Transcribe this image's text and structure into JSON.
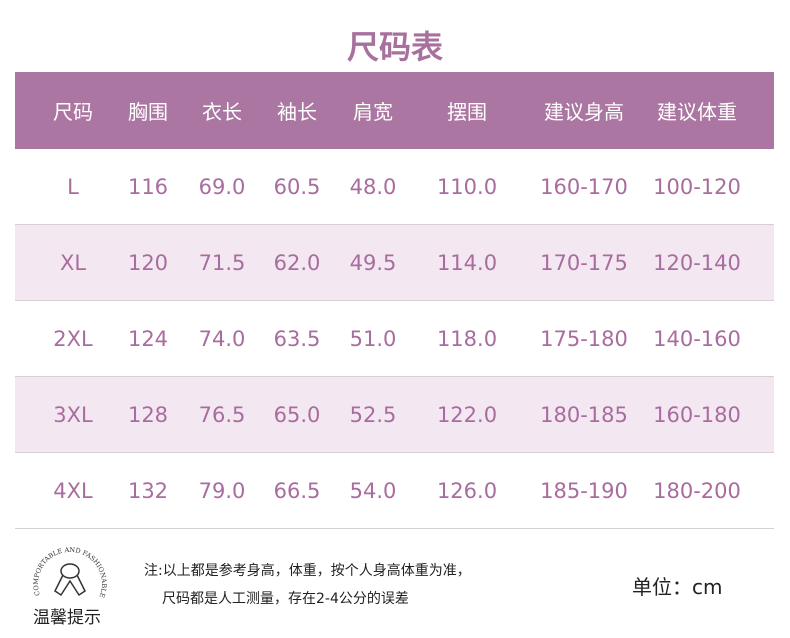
{
  "title": "尺码表",
  "headers": [
    "尺码",
    "胸围",
    "衣长",
    "袖长",
    "肩宽",
    "摆围",
    "建议身高",
    "建议体重"
  ],
  "rows": [
    [
      "L",
      "116",
      "69.0",
      "60.5",
      "48.0",
      "110.0",
      "160-170",
      "100-120"
    ],
    [
      "XL",
      "120",
      "71.5",
      "62.0",
      "49.5",
      "114.0",
      "170-175",
      "120-140"
    ],
    [
      "2XL",
      "124",
      "74.0",
      "63.5",
      "51.0",
      "118.0",
      "175-180",
      "140-160"
    ],
    [
      "3XL",
      "128",
      "76.5",
      "65.0",
      "52.5",
      "122.0",
      "180-185",
      "160-180"
    ],
    [
      "4XL",
      "132",
      "79.0",
      "66.5",
      "54.0",
      "126.0",
      "185-190",
      "180-200"
    ]
  ],
  "footer": {
    "logo_text": "COMPORTABLE AND FASHIONABLE",
    "tip_label": "温馨提示",
    "note_line1": "注:以上都是参考身高，体重，按个人身高体重为准，",
    "note_line2": "尺码都是人工测量，存在2-4公分的误差",
    "unit": "单位：cm"
  },
  "colors": {
    "header_bg": "#ac76a2",
    "text": "#a86c9e",
    "alt_row": "#f3e8f1"
  }
}
